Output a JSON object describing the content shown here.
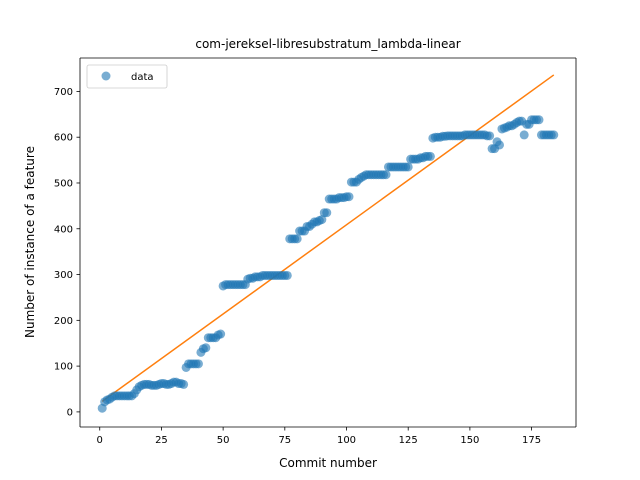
{
  "chart_data": {
    "type": "scatter",
    "title": "com-jereksel-libresubstratum_lambda-linear",
    "xlabel": "Commit number",
    "ylabel": "Number of instance of a feature",
    "xlim": [
      -8,
      193
    ],
    "ylim": [
      -33,
      773
    ],
    "xticks": [
      0,
      25,
      50,
      75,
      100,
      125,
      150,
      175
    ],
    "yticks": [
      0,
      100,
      200,
      300,
      400,
      500,
      600,
      700
    ],
    "legend": {
      "position": "top-left",
      "entries": [
        "data"
      ]
    },
    "colors": {
      "data": "#1f77b4",
      "fit": "#ff7f0e"
    },
    "grid": false,
    "series": [
      {
        "name": "data",
        "kind": "scatter",
        "x": [
          1,
          2,
          3,
          4,
          5,
          6,
          7,
          8,
          9,
          10,
          11,
          12,
          13,
          14,
          15,
          16,
          17,
          18,
          19,
          20,
          21,
          22,
          23,
          24,
          25,
          26,
          27,
          28,
          29,
          30,
          31,
          32,
          33,
          34,
          35,
          36,
          37,
          38,
          39,
          40,
          41,
          42,
          43,
          44,
          45,
          46,
          47,
          48,
          49,
          50,
          51,
          52,
          53,
          54,
          55,
          56,
          57,
          58,
          59,
          60,
          61,
          62,
          63,
          64,
          65,
          66,
          67,
          68,
          69,
          70,
          71,
          72,
          73,
          74,
          75,
          76,
          77,
          78,
          79,
          80,
          81,
          82,
          83,
          84,
          85,
          86,
          87,
          88,
          89,
          90,
          91,
          92,
          93,
          94,
          95,
          96,
          97,
          98,
          99,
          100,
          101,
          102,
          103,
          104,
          105,
          106,
          107,
          108,
          109,
          110,
          111,
          112,
          113,
          114,
          115,
          116,
          117,
          118,
          119,
          120,
          121,
          122,
          123,
          124,
          125,
          126,
          127,
          128,
          129,
          130,
          131,
          132,
          133,
          134,
          135,
          136,
          137,
          138,
          139,
          140,
          141,
          142,
          143,
          144,
          145,
          146,
          147,
          148,
          149,
          150,
          151,
          152,
          153,
          154,
          155,
          156,
          157,
          158,
          159,
          160,
          161,
          162,
          163,
          164,
          165,
          166,
          167,
          168,
          169,
          170,
          171,
          172,
          173,
          174,
          175,
          176,
          177,
          178,
          179,
          180,
          181,
          182,
          183,
          184
        ],
        "y": [
          8,
          22,
          26,
          28,
          32,
          35,
          35,
          35,
          35,
          35,
          35,
          35,
          35,
          40,
          48,
          55,
          58,
          60,
          60,
          60,
          58,
          58,
          58,
          60,
          62,
          62,
          60,
          60,
          62,
          65,
          65,
          62,
          62,
          60,
          97,
          105,
          105,
          105,
          105,
          105,
          130,
          138,
          140,
          162,
          162,
          162,
          162,
          168,
          170,
          275,
          278,
          278,
          278,
          278,
          278,
          278,
          278,
          278,
          278,
          290,
          292,
          292,
          295,
          295,
          295,
          298,
          298,
          298,
          298,
          298,
          298,
          298,
          298,
          298,
          298,
          298,
          378,
          378,
          378,
          378,
          395,
          395,
          395,
          405,
          405,
          410,
          415,
          415,
          418,
          420,
          435,
          435,
          465,
          465,
          465,
          465,
          468,
          468,
          468,
          470,
          470,
          502,
          502,
          502,
          508,
          512,
          515,
          518,
          518,
          518,
          518,
          518,
          518,
          518,
          518,
          518,
          535,
          535,
          535,
          535,
          535,
          535,
          535,
          535,
          535,
          552,
          552,
          552,
          552,
          555,
          555,
          558,
          558,
          558,
          598,
          600,
          600,
          600,
          602,
          602,
          603,
          603,
          603,
          603,
          603,
          603,
          603,
          605,
          605,
          605,
          605,
          605,
          605,
          605,
          605,
          605,
          603,
          603,
          575,
          575,
          590,
          583,
          618,
          620,
          622,
          625,
          625,
          628,
          632,
          635,
          635,
          605,
          628,
          628,
          638,
          638,
          638,
          638,
          605,
          605,
          605,
          605,
          605,
          605
        ]
      },
      {
        "name": "",
        "kind": "line",
        "x": [
          1,
          184
        ],
        "y": [
          23,
          736
        ]
      }
    ]
  }
}
